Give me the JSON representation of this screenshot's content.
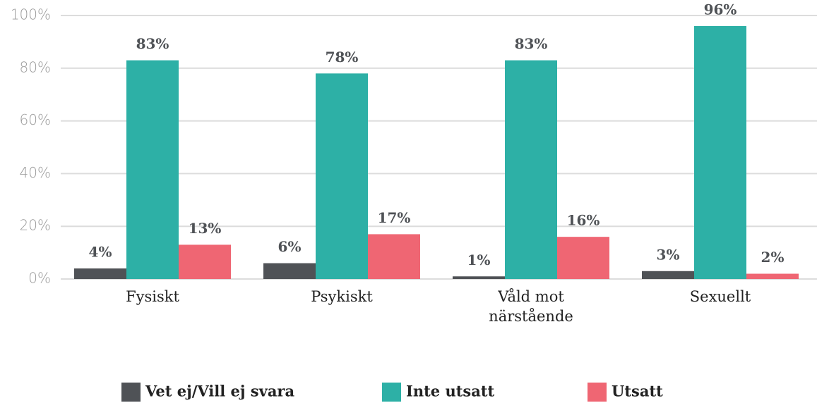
{
  "chart_data": {
    "type": "bar",
    "categories": [
      "Fysiskt",
      "Psykiskt",
      "Våld mot närstående",
      "Sexuellt"
    ],
    "series": [
      {
        "name": "Vet ej/Vill ej svara",
        "color": "#4f5256",
        "values": [
          4,
          6,
          1,
          3
        ],
        "value_labels": [
          "4%",
          "6%",
          "1%",
          "3%"
        ]
      },
      {
        "name": "Inte utsatt",
        "color": "#2db0a6",
        "values": [
          83,
          78,
          83,
          96
        ],
        "value_labels": [
          "83%",
          "78%",
          "83%",
          "96%"
        ]
      },
      {
        "name": "Utsatt",
        "color": "#ef6673",
        "values": [
          13,
          17,
          16,
          2
        ],
        "value_labels": [
          "13%",
          "17%",
          "16%",
          "2%"
        ]
      }
    ],
    "ylim": [
      0,
      100
    ],
    "yticks": [
      {
        "value": 0,
        "label": "0%"
      },
      {
        "value": 20,
        "label": "20%"
      },
      {
        "value": 40,
        "label": "40%"
      },
      {
        "value": 60,
        "label": "60%"
      },
      {
        "value": 80,
        "label": "80%"
      },
      {
        "value": 100,
        "label": "100%"
      }
    ],
    "grid": true,
    "legend": "bottom"
  }
}
